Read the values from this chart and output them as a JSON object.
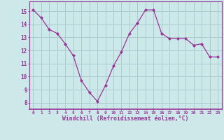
{
  "x": [
    0,
    1,
    2,
    3,
    4,
    5,
    6,
    7,
    8,
    9,
    10,
    11,
    12,
    13,
    14,
    15,
    16,
    17,
    18,
    19,
    20,
    21,
    22,
    23
  ],
  "y": [
    15.1,
    14.5,
    13.6,
    13.3,
    12.5,
    11.6,
    9.7,
    8.8,
    8.1,
    9.3,
    10.8,
    11.9,
    13.3,
    14.1,
    15.1,
    15.1,
    13.3,
    12.9,
    12.9,
    12.9,
    12.4,
    12.5,
    11.5,
    11.5
  ],
  "line_color": "#993399",
  "marker_color": "#993399",
  "bg_color": "#cce8e8",
  "grid_color": "#aacccc",
  "xlabel": "Windchill (Refroidissement éolien,°C)",
  "xlabel_color": "#993399",
  "tick_color": "#993399",
  "spine_color": "#993399",
  "ylim": [
    7.5,
    15.75
  ],
  "xlim": [
    -0.5,
    23.5
  ],
  "yticks": [
    8,
    9,
    10,
    11,
    12,
    13,
    14,
    15
  ],
  "xticks": [
    0,
    1,
    2,
    3,
    4,
    5,
    6,
    7,
    8,
    9,
    10,
    11,
    12,
    13,
    14,
    15,
    16,
    17,
    18,
    19,
    20,
    21,
    22,
    23
  ]
}
